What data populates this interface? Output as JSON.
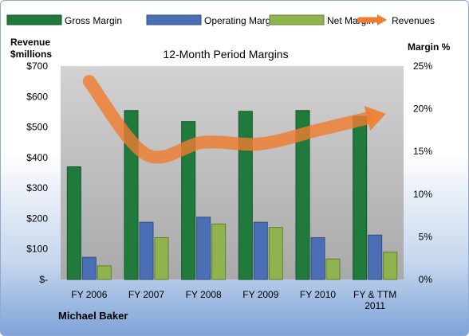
{
  "chart_data": {
    "type": "bar",
    "title": "12-Month Period Margins",
    "left_axis_label_line1": "Revenue",
    "left_axis_label_line2": "$millions",
    "right_axis_label": "Margin %",
    "author": "Michael Baker",
    "categories": [
      [
        "FY 2006"
      ],
      [
        "FY 2007"
      ],
      [
        "FY 2008"
      ],
      [
        "FY 2009"
      ],
      [
        "FY 2010"
      ],
      [
        "FY & TTM",
        "2011"
      ]
    ],
    "left_ticks": [
      "$-",
      "$100",
      "$200",
      "$300",
      "$400",
      "$500",
      "$600",
      "$700"
    ],
    "right_ticks": [
      "0%",
      "5%",
      "10%",
      "15%",
      "20%",
      "25%"
    ],
    "left_ylim": [
      0,
      700
    ],
    "right_ylim": [
      0,
      25
    ],
    "series": [
      {
        "name": "Gross Margin",
        "axis": "right",
        "unit": "%",
        "color": "#1f7a3c",
        "values": [
          13.2,
          19.8,
          18.5,
          19.7,
          19.8,
          19.1
        ]
      },
      {
        "name": "Operating Margin",
        "axis": "right",
        "unit": "%",
        "color": "#4a6fb5",
        "values": [
          2.6,
          6.7,
          7.3,
          6.7,
          4.9,
          5.2
        ]
      },
      {
        "name": "Net Margin",
        "axis": "right",
        "unit": "%",
        "color": "#8fb34d",
        "values": [
          1.6,
          4.9,
          6.5,
          6.1,
          2.4,
          3.2
        ]
      }
    ],
    "revenues": {
      "name": "Revenues",
      "axis": "left",
      "unit": "$M",
      "color": "#ee7d31",
      "values": [
        650,
        410,
        450,
        445,
        490,
        535
      ]
    },
    "legend_position": "top",
    "grid": false,
    "plot_background": "#c0c0c0"
  }
}
